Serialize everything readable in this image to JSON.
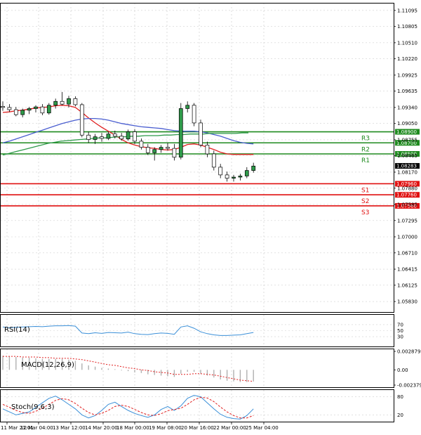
{
  "chart_data": [
    {
      "type": "candlestick",
      "panel": "price",
      "ylim": [
        1.0564,
        1.1122
      ],
      "ticks": [
        "1.11095",
        "1.10805",
        "1.10510",
        "1.10220",
        "1.09925",
        "1.09635",
        "1.09340",
        "1.09050",
        "1.08755",
        "1.08465",
        "1.08170",
        "1.07880",
        "1.07585",
        "1.07295",
        "1.07000",
        "1.06710",
        "1.06415",
        "1.06125",
        "1.05830"
      ],
      "current_price": "1.08283",
      "grid": true,
      "candles": [
        {
          "o": 1.0936,
          "h": 1.0945,
          "l": 1.0928,
          "c": 1.0934
        },
        {
          "o": 1.0934,
          "h": 1.094,
          "l": 1.0926,
          "c": 1.093
        },
        {
          "o": 1.093,
          "h": 1.0935,
          "l": 1.0918,
          "c": 1.0921
        },
        {
          "o": 1.0921,
          "h": 1.0932,
          "l": 1.0916,
          "c": 1.0929
        },
        {
          "o": 1.0929,
          "h": 1.0935,
          "l": 1.0922,
          "c": 1.0932
        },
        {
          "o": 1.0932,
          "h": 1.0938,
          "l": 1.0925,
          "c": 1.0935
        },
        {
          "o": 1.0935,
          "h": 1.094,
          "l": 1.092,
          "c": 1.0924
        },
        {
          "o": 1.0924,
          "h": 1.0942,
          "l": 1.0921,
          "c": 1.0938
        },
        {
          "o": 1.0938,
          "h": 1.095,
          "l": 1.0932,
          "c": 1.0945
        },
        {
          "o": 1.0945,
          "h": 1.0962,
          "l": 1.0938,
          "c": 1.094
        },
        {
          "o": 1.094,
          "h": 1.0955,
          "l": 1.0934,
          "c": 1.095
        },
        {
          "o": 1.095,
          "h": 1.0954,
          "l": 1.0936,
          "c": 1.0939
        },
        {
          "o": 1.0939,
          "h": 1.0942,
          "l": 1.088,
          "c": 1.0884
        },
        {
          "o": 1.0884,
          "h": 1.089,
          "l": 1.087,
          "c": 1.0876
        },
        {
          "o": 1.0876,
          "h": 1.0886,
          "l": 1.0868,
          "c": 1.0881
        },
        {
          "o": 1.0881,
          "h": 1.0888,
          "l": 1.0872,
          "c": 1.0878
        },
        {
          "o": 1.0878,
          "h": 1.089,
          "l": 1.0875,
          "c": 1.0886
        },
        {
          "o": 1.0886,
          "h": 1.0892,
          "l": 1.0878,
          "c": 1.0882
        },
        {
          "o": 1.0882,
          "h": 1.0888,
          "l": 1.0874,
          "c": 1.0877
        },
        {
          "o": 1.0877,
          "h": 1.0894,
          "l": 1.0874,
          "c": 1.089
        },
        {
          "o": 1.089,
          "h": 1.0895,
          "l": 1.0868,
          "c": 1.0873
        },
        {
          "o": 1.0873,
          "h": 1.0878,
          "l": 1.0858,
          "c": 1.0862
        },
        {
          "o": 1.0862,
          "h": 1.0868,
          "l": 1.0848,
          "c": 1.0852
        },
        {
          "o": 1.0852,
          "h": 1.0862,
          "l": 1.0838,
          "c": 1.0858
        },
        {
          "o": 1.0858,
          "h": 1.0866,
          "l": 1.0852,
          "c": 1.0862
        },
        {
          "o": 1.0862,
          "h": 1.087,
          "l": 1.0856,
          "c": 1.086
        },
        {
          "o": 1.086,
          "h": 1.0868,
          "l": 1.0838,
          "c": 1.0844
        },
        {
          "o": 1.0844,
          "h": 1.0942,
          "l": 1.084,
          "c": 1.0932
        },
        {
          "o": 1.0932,
          "h": 1.0945,
          "l": 1.0925,
          "c": 1.0938
        },
        {
          "o": 1.0938,
          "h": 1.0942,
          "l": 1.09,
          "c": 1.0906
        },
        {
          "o": 1.0906,
          "h": 1.0912,
          "l": 1.0862,
          "c": 1.0866
        },
        {
          "o": 1.0866,
          "h": 1.0872,
          "l": 1.0844,
          "c": 1.085
        },
        {
          "o": 1.085,
          "h": 1.0856,
          "l": 1.082,
          "c": 1.0826
        },
        {
          "o": 1.0826,
          "h": 1.0832,
          "l": 1.0806,
          "c": 1.0812
        },
        {
          "o": 1.0812,
          "h": 1.0818,
          "l": 1.08,
          "c": 1.0806
        },
        {
          "o": 1.0806,
          "h": 1.0812,
          "l": 1.08,
          "c": 1.0808
        },
        {
          "o": 1.0808,
          "h": 1.0814,
          "l": 1.0802,
          "c": 1.081
        },
        {
          "o": 1.081,
          "h": 1.0826,
          "l": 1.0806,
          "c": 1.082
        },
        {
          "o": 1.082,
          "h": 1.0834,
          "l": 1.0816,
          "c": 1.0828
        }
      ],
      "moving_averages": [
        {
          "color": "#e02020",
          "values": [
            1.0925,
            1.0926,
            1.0928,
            1.0929,
            1.0931,
            1.0933,
            1.0934,
            1.0935,
            1.0937,
            1.0938,
            1.0937,
            1.0934,
            1.0925,
            1.0915,
            1.0906,
            1.0898,
            1.0891,
            1.0884,
            1.0876,
            1.087,
            1.0866,
            1.0863,
            1.0861,
            1.086,
            1.0858,
            1.0857,
            1.0858,
            1.0862,
            1.0867,
            1.0868,
            1.0866,
            1.0862,
            1.0858,
            1.0853,
            1.085,
            1.0849,
            1.0849,
            1.0849,
            1.0849
          ]
        },
        {
          "color": "#4a5ed0",
          "values": [
            1.087,
            1.0873,
            1.0877,
            1.0881,
            1.0885,
            1.0889,
            1.0893,
            1.0897,
            1.0901,
            1.0905,
            1.0908,
            1.0911,
            1.0913,
            1.0914,
            1.0914,
            1.0913,
            1.0911,
            1.0908,
            1.0905,
            1.0903,
            1.0901,
            1.0899,
            1.0898,
            1.0897,
            1.0896,
            1.0894,
            1.0892,
            1.0891,
            1.0891,
            1.0891,
            1.089,
            1.0888,
            1.0885,
            1.0882,
            1.0878,
            1.0874,
            1.0871,
            1.0869,
            1.0868
          ]
        },
        {
          "color": "#2f9a4a",
          "values": [
            1.0848,
            1.0851,
            1.0854,
            1.0857,
            1.086,
            1.0863,
            1.0866,
            1.0869,
            1.0871,
            1.0873,
            1.0874,
            1.0875,
            1.0876,
            1.0877,
            1.0878,
            1.0879,
            1.0879,
            1.088,
            1.0881,
            1.0881,
            1.0882,
            1.0882,
            1.0883,
            1.0883,
            1.0883,
            1.0884,
            1.0884,
            1.0885,
            1.0885,
            1.0886,
            1.0886,
            1.0886,
            1.0887,
            1.0887,
            1.0887,
            1.0887,
            1.0887,
            1.0888,
            1.0888
          ]
        }
      ],
      "levels": [
        {
          "name": "R3",
          "value": 1.089,
          "label": "1.08900",
          "color": "#1e8a1e"
        },
        {
          "name": "R2",
          "value": 1.087,
          "label": "1.08700",
          "color": "#1e8a1e"
        },
        {
          "name": "R1",
          "value": 1.085,
          "label": "1.08500",
          "color": "#1e8a1e"
        },
        {
          "name": "S1",
          "value": 1.0796,
          "label": "1.07960",
          "color": "#e01010"
        },
        {
          "name": "S2",
          "value": 1.0776,
          "label": "1.07760",
          "color": "#e01010"
        },
        {
          "name": "S3",
          "value": 1.0756,
          "label": "1.07560",
          "color": "#e01010"
        }
      ]
    },
    {
      "type": "line",
      "panel": "rsi",
      "title": "RSI(14)",
      "ticks": [
        "70",
        "50",
        "30"
      ],
      "ylim": [
        0,
        100
      ],
      "series": [
        {
          "color": "#3a8fd8",
          "values": [
            62,
            60,
            61,
            62,
            63,
            64,
            63,
            65,
            66,
            66,
            67,
            65,
            42,
            40,
            43,
            41,
            44,
            43,
            42,
            45,
            40,
            38,
            37,
            40,
            42,
            41,
            38,
            62,
            66,
            58,
            46,
            40,
            36,
            34,
            34,
            35,
            36,
            40,
            44
          ]
        }
      ]
    },
    {
      "type": "macd",
      "panel": "macd",
      "title": "MACD(12,26,9)",
      "ticks": [
        "0.002879",
        "0.00",
        "-0.002379"
      ],
      "ylim": [
        -0.0026,
        0.0031
      ],
      "histogram": [
        0.0022,
        0.0021,
        0.002,
        0.0019,
        0.0019,
        0.0018,
        0.0017,
        0.0017,
        0.0017,
        0.0017,
        0.0016,
        0.0014,
        0.001,
        0.0007,
        0.0005,
        0.0003,
        0.0002,
        0.0001,
        -0.0001,
        -0.0002,
        -0.0004,
        -0.0005,
        -0.0007,
        -0.0008,
        -0.0009,
        -0.001,
        -0.0011,
        -0.0006,
        -0.0003,
        -0.0003,
        -0.0006,
        -0.0009,
        -0.0012,
        -0.0015,
        -0.0017,
        -0.0018,
        -0.0019,
        -0.0019,
        -0.0018
      ],
      "signal": [
        0.0021,
        0.0021,
        0.0021,
        0.002,
        0.002,
        0.002,
        0.0019,
        0.0019,
        0.0018,
        0.0018,
        0.0018,
        0.0017,
        0.0016,
        0.0014,
        0.0012,
        0.001,
        0.0008,
        0.0007,
        0.0005,
        0.0003,
        0.0002,
        0.0,
        -0.0001,
        -0.0003,
        -0.0004,
        -0.0005,
        -0.0007,
        -0.0007,
        -0.0007,
        -0.0006,
        -0.0006,
        -0.0007,
        -0.0008,
        -0.001,
        -0.0012,
        -0.0014,
        -0.0016,
        -0.0017,
        -0.0018
      ]
    },
    {
      "type": "line",
      "panel": "stoch",
      "title": "Stoch(9,6,3)",
      "ticks": [
        "80",
        "20"
      ],
      "ylim": [
        0,
        100
      ],
      "series": [
        {
          "color": "#3a8fd8",
          "values": [
            40,
            30,
            20,
            25,
            30,
            45,
            60,
            75,
            82,
            70,
            55,
            40,
            20,
            10,
            18,
            35,
            55,
            62,
            48,
            35,
            25,
            18,
            12,
            20,
            38,
            48,
            35,
            50,
            75,
            85,
            80,
            60,
            40,
            22,
            12,
            8,
            6,
            18,
            40
          ]
        },
        {
          "color": "#e02020",
          "values": [
            55,
            45,
            35,
            28,
            25,
            32,
            42,
            55,
            68,
            74,
            70,
            58,
            42,
            28,
            20,
            25,
            35,
            48,
            52,
            48,
            38,
            28,
            20,
            18,
            24,
            34,
            38,
            42,
            55,
            70,
            78,
            76,
            64,
            46,
            30,
            18,
            10,
            10,
            18
          ],
          "dashed": true
        }
      ]
    },
    {
      "type": "time_axis",
      "labels": [
        "11 Mar 21:01",
        "12 Mar 04:00",
        "13 Mar 12:00",
        "14 Mar 20:00",
        "18 Mar 00:00",
        "19 Mar 08:00",
        "20 Mar 16:00",
        "22 Mar 00:00",
        "25 Mar 04:00"
      ]
    }
  ]
}
